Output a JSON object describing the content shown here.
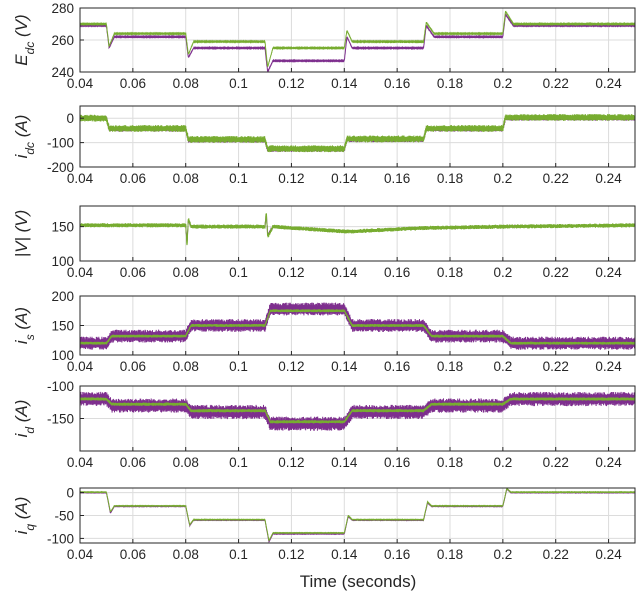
{
  "xlabel": "Time (seconds)",
  "colors": {
    "purple": "#7E2F8E",
    "green": "#77AC30",
    "grid": "#dcdcdc",
    "axis": "#262626"
  },
  "chart_data": [
    {
      "type": "line",
      "ylabel": {
        "main": "E",
        "sub": "dc",
        "unit": " (V)"
      },
      "xlim": [
        0.04,
        0.25
      ],
      "ylim": [
        240,
        280
      ],
      "xticks": [
        0.04,
        0.06,
        0.08,
        0.1,
        0.12,
        0.14,
        0.16,
        0.18,
        0.2,
        0.22,
        0.24
      ],
      "xtick_labels": [
        "0.04",
        "0.06",
        "0.08",
        "0.1",
        "0.12",
        "0.14",
        "0.16",
        "0.18",
        "0.2",
        "0.22",
        "0.24"
      ],
      "yticks": [
        240,
        260,
        280
      ],
      "ytick_labels": [
        "240",
        "260",
        "280"
      ],
      "series": [
        {
          "color": "#7E2F8E",
          "noise": 0.3,
          "x": [
            0.04,
            0.05,
            0.051,
            0.053,
            0.08,
            0.081,
            0.083,
            0.11,
            0.111,
            0.113,
            0.14,
            0.141,
            0.143,
            0.17,
            0.171,
            0.174,
            0.2,
            0.201,
            0.204,
            0.25
          ],
          "y": [
            269,
            269,
            255,
            262,
            262,
            249,
            255,
            255,
            240,
            247,
            247,
            262,
            255,
            255,
            269,
            262,
            262,
            276,
            269,
            269
          ]
        },
        {
          "color": "#77AC30",
          "noise": 0.3,
          "x": [
            0.04,
            0.05,
            0.051,
            0.053,
            0.08,
            0.081,
            0.083,
            0.11,
            0.111,
            0.113,
            0.14,
            0.141,
            0.143,
            0.17,
            0.171,
            0.174,
            0.2,
            0.201,
            0.204,
            0.25
          ],
          "y": [
            270,
            270,
            256,
            264,
            264,
            251,
            259,
            259,
            243,
            255,
            255,
            266,
            259,
            259,
            271,
            264,
            264,
            278,
            270,
            270
          ]
        }
      ]
    },
    {
      "type": "line",
      "ylabel": {
        "main": "i",
        "sub": "dc",
        "unit": " (A)"
      },
      "xlim": [
        0.04,
        0.25
      ],
      "ylim": [
        -200,
        50
      ],
      "xticks": [
        0.04,
        0.06,
        0.08,
        0.1,
        0.12,
        0.14,
        0.16,
        0.18,
        0.2,
        0.22,
        0.24
      ],
      "xtick_labels": [
        "0.04",
        "0.06",
        "0.08",
        "0.1",
        "0.12",
        "0.14",
        "0.16",
        "0.18",
        "0.2",
        "0.22",
        "0.24"
      ],
      "yticks": [
        -200,
        -100,
        0
      ],
      "ytick_labels": [
        "-200",
        "-100",
        "0"
      ],
      "series": [
        {
          "color": "#7E2F8E",
          "noise": 10,
          "x": [
            0.04,
            0.05,
            0.051,
            0.08,
            0.081,
            0.11,
            0.111,
            0.14,
            0.141,
            0.17,
            0.171,
            0.2,
            0.201,
            0.25
          ],
          "y": [
            0,
            0,
            -45,
            -45,
            -90,
            -90,
            -128,
            -128,
            -88,
            -88,
            -45,
            -45,
            0,
            0
          ]
        },
        {
          "color": "#77AC30",
          "noise": 14,
          "x": [
            0.04,
            0.05,
            0.051,
            0.08,
            0.081,
            0.11,
            0.111,
            0.14,
            0.141,
            0.17,
            0.171,
            0.2,
            0.201,
            0.25
          ],
          "y": [
            0,
            0,
            -42,
            -42,
            -87,
            -87,
            -125,
            -125,
            -85,
            -85,
            -42,
            -42,
            3,
            3
          ]
        }
      ]
    },
    {
      "type": "line",
      "ylabel": {
        "main": "|V|",
        "sub": "",
        "unit": " (V)"
      },
      "xlim": [
        0.04,
        0.25
      ],
      "ylim": [
        100,
        180
      ],
      "xticks": [
        0.04,
        0.06,
        0.08,
        0.1,
        0.12,
        0.14,
        0.16,
        0.18,
        0.2,
        0.22,
        0.24
      ],
      "xtick_labels": [
        "0.04",
        "0.06",
        "0.08",
        "0.1",
        "0.12",
        "0.14",
        "0.16",
        "0.18",
        "0.2",
        "0.22",
        "0.24"
      ],
      "yticks": [
        100,
        150
      ],
      "ytick_labels": [
        "100",
        "150"
      ],
      "series": [
        {
          "color": "#7E2F8E",
          "noise": 1.5,
          "x": [
            0.04,
            0.08,
            0.0805,
            0.081,
            0.082,
            0.11,
            0.1105,
            0.111,
            0.113,
            0.14,
            0.143,
            0.17,
            0.2,
            0.25
          ],
          "y": [
            152,
            152,
            125,
            160,
            150,
            150,
            170,
            138,
            150,
            143,
            143,
            148,
            150,
            152
          ]
        },
        {
          "color": "#77AC30",
          "noise": 3,
          "x": [
            0.04,
            0.08,
            0.0805,
            0.081,
            0.082,
            0.11,
            0.1105,
            0.111,
            0.113,
            0.14,
            0.143,
            0.17,
            0.2,
            0.25
          ],
          "y": [
            152,
            152,
            120,
            162,
            150,
            150,
            172,
            135,
            150,
            143,
            143,
            148,
            150,
            152
          ]
        }
      ]
    },
    {
      "type": "line",
      "ylabel": {
        "main": "i",
        "sub": "s",
        "unit": " (A)"
      },
      "xlim": [
        0.04,
        0.25
      ],
      "ylim": [
        100,
        200
      ],
      "xticks": [
        0.04,
        0.06,
        0.08,
        0.1,
        0.12,
        0.14,
        0.16,
        0.18,
        0.2,
        0.22,
        0.24
      ],
      "xtick_labels": [
        "0.04",
        "0.06",
        "0.08",
        "0.1",
        "0.12",
        "0.14",
        "0.16",
        "0.18",
        "0.2",
        "0.22",
        "0.24"
      ],
      "yticks": [
        100,
        150,
        200
      ],
      "ytick_labels": [
        "100",
        "150",
        "200"
      ],
      "series": [
        {
          "color": "#7E2F8E",
          "noise": 11,
          "x": [
            0.04,
            0.05,
            0.052,
            0.08,
            0.082,
            0.11,
            0.112,
            0.14,
            0.143,
            0.17,
            0.173,
            0.2,
            0.203,
            0.25
          ],
          "y": [
            120,
            120,
            132,
            132,
            150,
            150,
            178,
            178,
            150,
            150,
            132,
            132,
            120,
            120
          ]
        },
        {
          "color": "#77AC30",
          "noise": 2.5,
          "x": [
            0.04,
            0.05,
            0.052,
            0.08,
            0.082,
            0.11,
            0.112,
            0.14,
            0.143,
            0.17,
            0.173,
            0.2,
            0.203,
            0.25
          ],
          "y": [
            120,
            120,
            132,
            132,
            150,
            150,
            175,
            175,
            150,
            150,
            132,
            132,
            120,
            120
          ]
        }
      ]
    },
    {
      "type": "line",
      "ylabel": {
        "main": "i",
        "sub": "d",
        "unit": " (A)"
      },
      "xlim": [
        0.04,
        0.25
      ],
      "ylim": [
        -200,
        -100
      ],
      "xticks": [
        0.04,
        0.06,
        0.08,
        0.1,
        0.12,
        0.14,
        0.16,
        0.18,
        0.2,
        0.22,
        0.24
      ],
      "xtick_labels": [
        "0.04",
        "0.06",
        "0.08",
        "0.1",
        "0.12",
        "0.14",
        "0.16",
        "0.18",
        "0.2",
        "0.22",
        "0.24"
      ],
      "yticks": [
        -150,
        -100
      ],
      "ytick_labels": [
        "-150",
        "-100"
      ],
      "series": [
        {
          "color": "#7E2F8E",
          "noise": 11,
          "x": [
            0.04,
            0.05,
            0.052,
            0.08,
            0.082,
            0.11,
            0.112,
            0.14,
            0.143,
            0.17,
            0.173,
            0.2,
            0.203,
            0.25
          ],
          "y": [
            -120,
            -120,
            -130,
            -130,
            -140,
            -140,
            -158,
            -158,
            -140,
            -140,
            -130,
            -130,
            -120,
            -120
          ]
        },
        {
          "color": "#77AC30",
          "noise": 2.5,
          "x": [
            0.04,
            0.05,
            0.052,
            0.08,
            0.082,
            0.11,
            0.112,
            0.14,
            0.143,
            0.17,
            0.173,
            0.2,
            0.203,
            0.25
          ],
          "y": [
            -120,
            -120,
            -128,
            -128,
            -138,
            -138,
            -155,
            -155,
            -138,
            -138,
            -128,
            -128,
            -120,
            -120
          ]
        }
      ]
    },
    {
      "type": "line",
      "ylabel": {
        "main": "i",
        "sub": "q",
        "unit": " (A)"
      },
      "xlim": [
        0.04,
        0.25
      ],
      "ylim": [
        -110,
        10
      ],
      "xticks": [
        0.04,
        0.06,
        0.08,
        0.1,
        0.12,
        0.14,
        0.16,
        0.18,
        0.2,
        0.22,
        0.24
      ],
      "xtick_labels": [
        "0.04",
        "0.06",
        "0.08",
        "0.1",
        "0.12",
        "0.14",
        "0.16",
        "0.18",
        "0.2",
        "0.22",
        "0.24"
      ],
      "yticks": [
        -100,
        -50,
        0
      ],
      "ytick_labels": [
        "-100",
        "-50",
        "0"
      ],
      "series": [
        {
          "color": "#7E2F8E",
          "noise": 0.6,
          "x": [
            0.04,
            0.05,
            0.0515,
            0.053,
            0.08,
            0.0815,
            0.083,
            0.11,
            0.1115,
            0.113,
            0.14,
            0.1415,
            0.143,
            0.17,
            0.1715,
            0.173,
            0.2,
            0.2015,
            0.203,
            0.25
          ],
          "y": [
            0,
            0,
            -45,
            -30,
            -30,
            -72,
            -60,
            -60,
            -108,
            -90,
            -90,
            -52,
            -60,
            -60,
            -22,
            -30,
            -30,
            8,
            0,
            0
          ]
        },
        {
          "color": "#77AC30",
          "noise": 0.6,
          "x": [
            0.04,
            0.05,
            0.0515,
            0.053,
            0.08,
            0.0815,
            0.083,
            0.11,
            0.1115,
            0.113,
            0.14,
            0.1415,
            0.143,
            0.17,
            0.1715,
            0.173,
            0.2,
            0.2015,
            0.203,
            0.25
          ],
          "y": [
            1,
            1,
            -42,
            -29,
            -29,
            -70,
            -59,
            -59,
            -105,
            -88,
            -88,
            -50,
            -59,
            -59,
            -20,
            -29,
            -29,
            9,
            1,
            1
          ]
        }
      ]
    }
  ]
}
